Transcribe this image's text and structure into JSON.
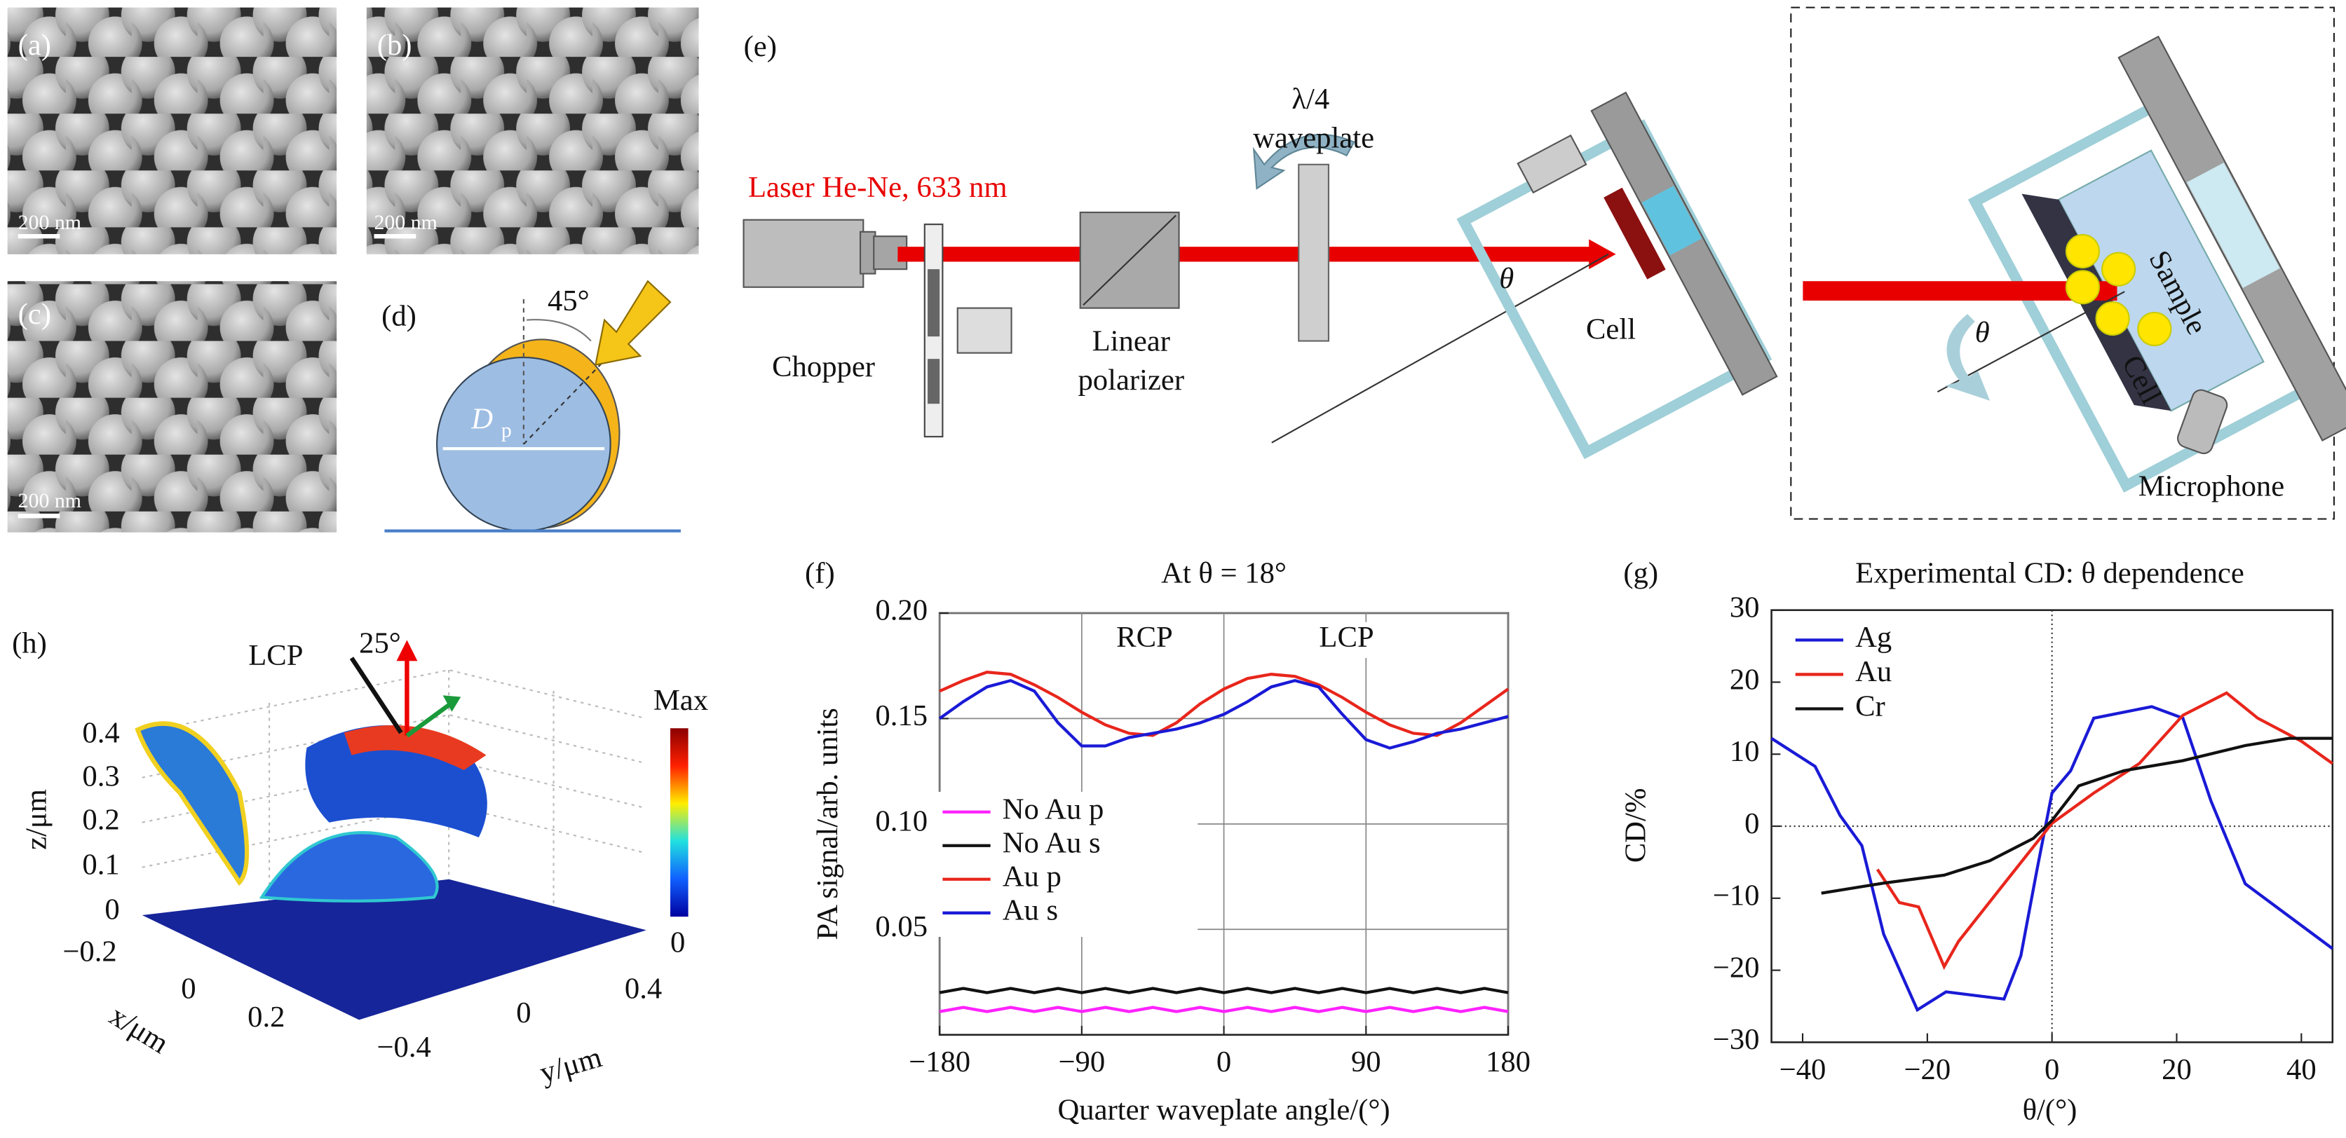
{
  "panels": {
    "a": {
      "label": "(a)",
      "scale_bar": "200 nm"
    },
    "b": {
      "label": "(b)",
      "scale_bar": "200 nm"
    },
    "c": {
      "label": "(c)",
      "scale_bar": "200 nm"
    },
    "d": {
      "label": "(d)",
      "angle": "45°",
      "diameter": "D",
      "diameter_subscript": "p"
    },
    "e": {
      "label": "(e)",
      "waveplate": [
        "λ/4",
        "waveplate"
      ],
      "laser": "Laser He-Ne, 633 nm",
      "theta": "θ",
      "cell": "Cell",
      "chopper": "Chopper",
      "polarizer": [
        "Linear",
        "polarizer"
      ],
      "inset": {
        "sample": "Sample",
        "cell": "Cell",
        "theta": "θ",
        "microphone": "Microphone"
      }
    },
    "h": {
      "label": "(h)",
      "lcp": "LCP",
      "angle": "25°",
      "z_label": "z/μm",
      "x_label": "x/μm",
      "y_label": "y/μm",
      "z_ticks": [
        "0.4",
        "0.3",
        "0.2",
        "0.1",
        "0"
      ],
      "x_ticks": [
        "−0.2",
        "0",
        "0.2"
      ],
      "y_ticks": [
        "0.4",
        "0",
        "−0.4"
      ],
      "colorbar": [
        "Max",
        "0"
      ]
    }
  },
  "chart_data": [
    {
      "type": "line",
      "panel_label": "(f)",
      "title": "At θ = 18°",
      "x_label": "Quarter waveplate angle/(°)",
      "y_label": "PA signal/arb. units",
      "annotations": [
        "RCP",
        "LCP"
      ],
      "x": [
        -180,
        -165,
        -150,
        -135,
        -120,
        -105,
        -90,
        -75,
        -60,
        -45,
        -30,
        -15,
        0,
        15,
        30,
        45,
        60,
        75,
        90,
        105,
        120,
        135,
        150,
        165,
        180
      ],
      "series": [
        {
          "name": "No Au p",
          "color": "#ff22ff",
          "values": [
            0.011,
            0.013,
            0.011,
            0.013,
            0.011,
            0.013,
            0.011,
            0.013,
            0.011,
            0.013,
            0.011,
            0.013,
            0.011,
            0.013,
            0.011,
            0.013,
            0.011,
            0.013,
            0.011,
            0.013,
            0.011,
            0.013,
            0.011,
            0.013,
            0.011
          ]
        },
        {
          "name": "No Au s",
          "color": "#111111",
          "values": [
            0.02,
            0.022,
            0.02,
            0.022,
            0.02,
            0.022,
            0.02,
            0.022,
            0.02,
            0.022,
            0.02,
            0.022,
            0.02,
            0.022,
            0.02,
            0.022,
            0.02,
            0.022,
            0.02,
            0.022,
            0.02,
            0.022,
            0.02,
            0.022,
            0.02
          ]
        },
        {
          "name": "Au p",
          "color": "#e8261c",
          "values": [
            0.163,
            0.168,
            0.172,
            0.171,
            0.166,
            0.16,
            0.153,
            0.147,
            0.143,
            0.142,
            0.148,
            0.157,
            0.164,
            0.169,
            0.171,
            0.17,
            0.166,
            0.16,
            0.153,
            0.147,
            0.143,
            0.142,
            0.148,
            0.156,
            0.164
          ]
        },
        {
          "name": "Au s",
          "color": "#1a1ad6",
          "values": [
            0.15,
            0.158,
            0.165,
            0.168,
            0.163,
            0.148,
            0.137,
            0.137,
            0.141,
            0.143,
            0.145,
            0.148,
            0.152,
            0.158,
            0.165,
            0.168,
            0.165,
            0.152,
            0.14,
            0.136,
            0.139,
            0.143,
            0.145,
            0.148,
            0.151
          ]
        }
      ],
      "xlim": [
        -180,
        180
      ],
      "xticks": [
        {
          "value": -180,
          "label": "−180"
        },
        {
          "value": -90,
          "label": "−90"
        },
        0,
        90,
        180
      ],
      "ylim": [
        0,
        0.2
      ],
      "yticks": [
        0.05,
        {
          "value": 0.1,
          "label": "0.10"
        },
        0.15,
        {
          "value": 0.2,
          "label": "0.20"
        }
      ],
      "grid": true,
      "legend": "lower left"
    },
    {
      "type": "line",
      "panel_label": "(g)",
      "title": "Experimental CD: θ dependence",
      "x_label": "θ/(°)",
      "y_label": "CD/%",
      "series": [
        {
          "name": "Ag",
          "color": "#1a1ad6",
          "x": [
            -45,
            -38,
            -34,
            -30.5,
            -27,
            -21.6,
            -17,
            -7.7,
            -5,
            -2.4,
            0,
            3,
            6.7,
            16,
            21,
            25.5,
            31,
            45
          ],
          "values": [
            12.2,
            8.3,
            1.5,
            -2.7,
            -15,
            -25.5,
            -23,
            -24,
            -18,
            -6,
            4.6,
            7.7,
            15,
            16.6,
            15,
            3.5,
            -8,
            -17
          ]
        },
        {
          "name": "Au",
          "color": "#e8261c",
          "x": [
            -28,
            -24.5,
            -21.4,
            -17.3,
            -15,
            -7.7,
            0,
            6.7,
            14,
            21,
            28,
            33,
            40,
            45
          ],
          "values": [
            -6,
            -10.6,
            -11.2,
            -19.5,
            -16,
            -8,
            0.4,
            4.6,
            8.7,
            15.4,
            18.5,
            15,
            11.8,
            8.7
          ]
        },
        {
          "name": "Cr",
          "color": "#111111",
          "x": [
            -37,
            -27,
            -17.3,
            -10,
            -3,
            0,
            4.3,
            11.5,
            21,
            31,
            38,
            45
          ],
          "values": [
            -9.3,
            -7.9,
            -6.8,
            -4.8,
            -1.7,
            0.8,
            5.6,
            7.7,
            9.1,
            11.2,
            12.2,
            12.2
          ]
        }
      ],
      "xlim": [
        -45,
        45
      ],
      "xticks": [
        {
          "value": -40,
          "label": "−40"
        },
        {
          "value": -20,
          "label": "−20"
        },
        0,
        20,
        40
      ],
      "ylim": [
        -30,
        30
      ],
      "yticks": [
        {
          "value": -30,
          "label": "−30"
        },
        {
          "value": -20,
          "label": "−20"
        },
        {
          "value": -10,
          "label": "−10"
        },
        0,
        10,
        20,
        30
      ],
      "grid": false,
      "zero_lines": true,
      "legend": "upper left"
    }
  ]
}
